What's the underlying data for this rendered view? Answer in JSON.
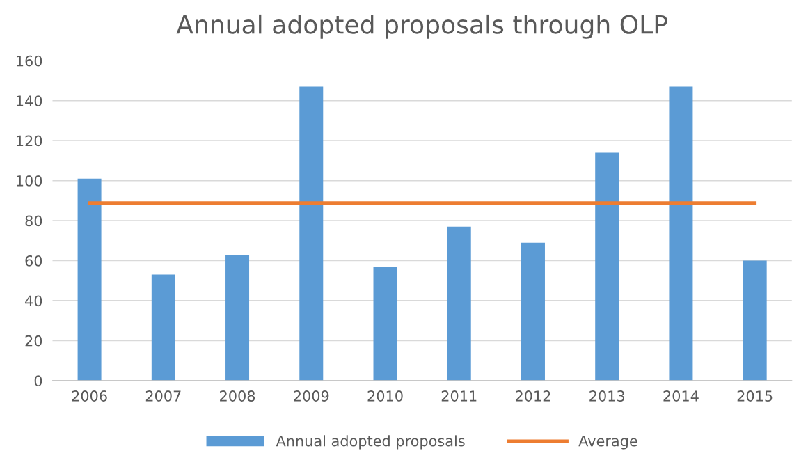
{
  "chart_data": {
    "type": "bar",
    "title": "Annual adopted proposals through OLP",
    "categories": [
      "2006",
      "2007",
      "2008",
      "2009",
      "2010",
      "2011",
      "2012",
      "2013",
      "2014",
      "2015"
    ],
    "series": [
      {
        "name": "Annual adopted proposals",
        "color": "#5b9bd5",
        "values": [
          101,
          53,
          63,
          147,
          57,
          77,
          69,
          114,
          147,
          60
        ]
      },
      {
        "name": "Average",
        "type": "line",
        "color": "#ed7d31",
        "values": [
          88.8,
          88.8,
          88.8,
          88.8,
          88.8,
          88.8,
          88.8,
          88.8,
          88.8,
          88.8
        ]
      }
    ],
    "ylim": [
      0,
      160
    ],
    "yticks": [
      0,
      20,
      40,
      60,
      80,
      100,
      120,
      140,
      160
    ],
    "grid": "y",
    "legend": "bottom",
    "marker": "none",
    "line_style": "solid"
  }
}
